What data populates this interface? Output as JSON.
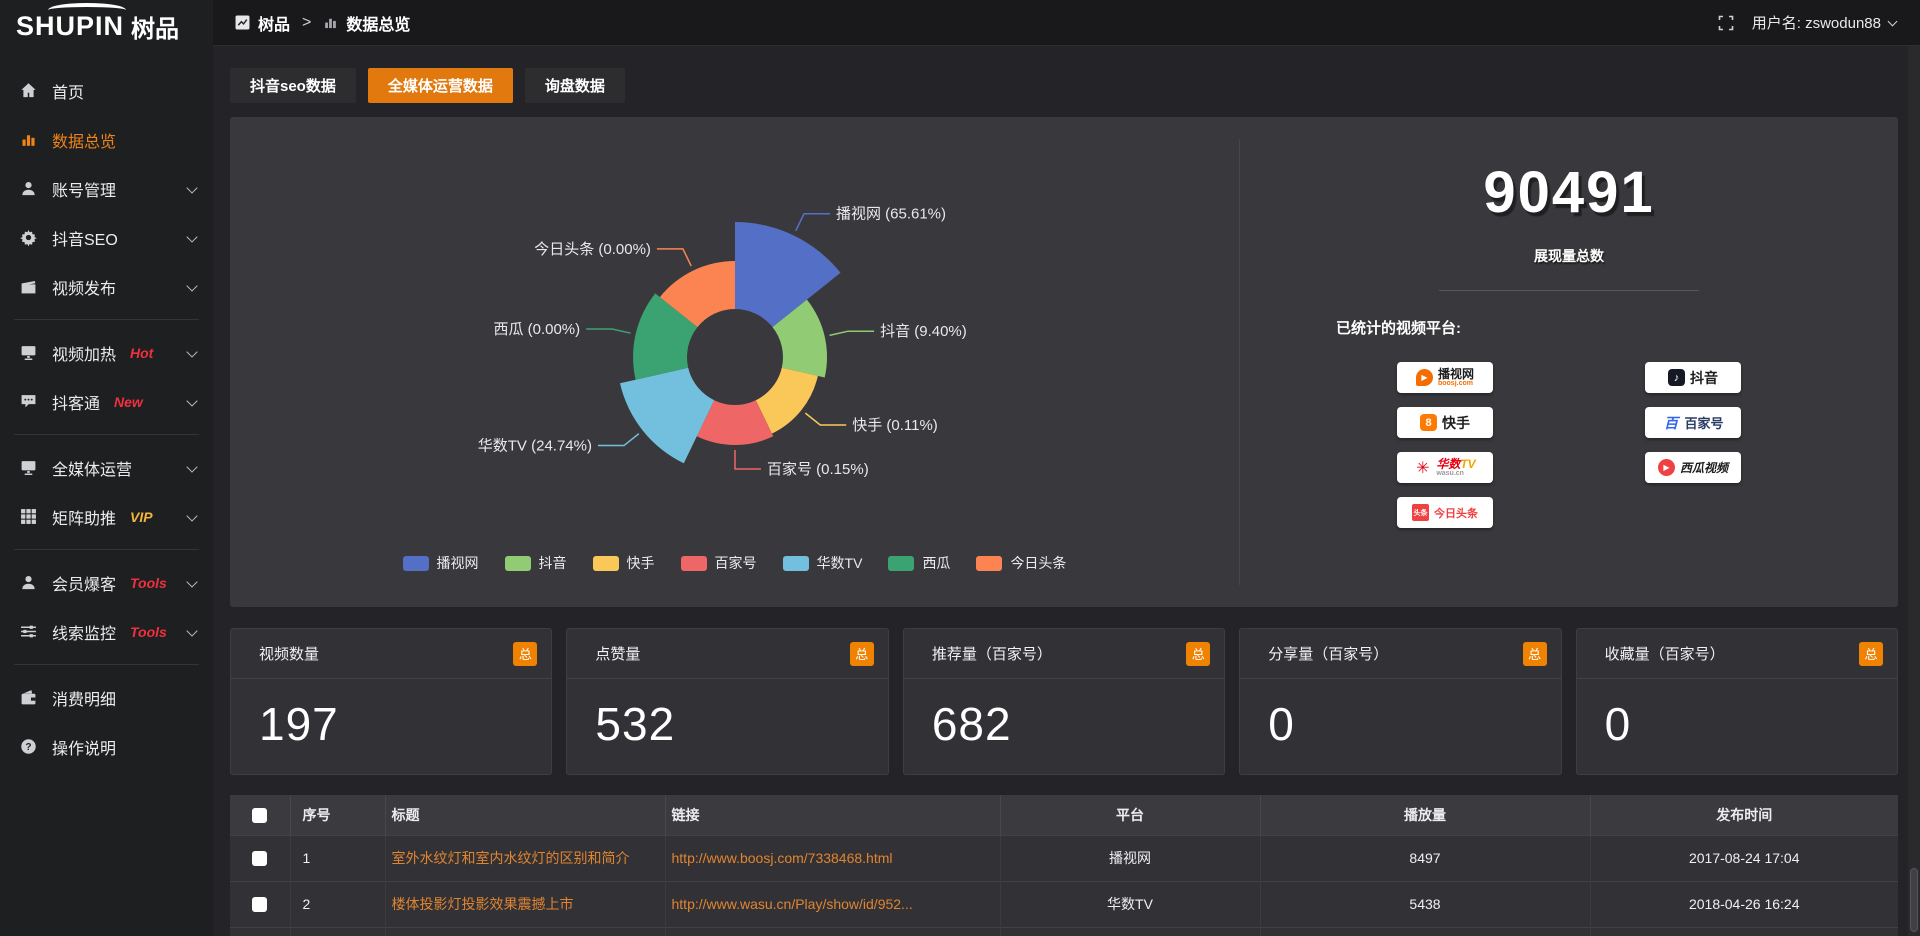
{
  "brand": {
    "logo_en": "SHUPIN",
    "logo_cn": "树品"
  },
  "topbar": {
    "breadcrumb_home": "树品",
    "breadcrumb_sep": ">",
    "breadcrumb_current": "数据总览",
    "username": "用户名: zswodun88"
  },
  "sidebar": {
    "items": [
      {
        "label": "首页"
      },
      {
        "label": "数据总览",
        "active": true
      },
      {
        "label": "账号管理"
      },
      {
        "label": "抖音SEO"
      },
      {
        "label": "视频发布"
      },
      {
        "label": "视频加热",
        "badge": "Hot"
      },
      {
        "label": "抖客通",
        "badge": "New"
      },
      {
        "label": "全媒体运营"
      },
      {
        "label": "矩阵助推",
        "badge": "VIP"
      },
      {
        "label": "会员爆客",
        "badge": "Tools"
      },
      {
        "label": "线索监控",
        "badge": "Tools"
      },
      {
        "label": "消费明细"
      },
      {
        "label": "操作说明"
      }
    ]
  },
  "tabs": [
    {
      "label": "抖音seo数据",
      "active": false
    },
    {
      "label": "全媒体运营数据",
      "active": true
    },
    {
      "label": "询盘数据",
      "active": false
    }
  ],
  "chart_data": {
    "type": "pie",
    "subtype": "nightingale-rose",
    "categories": [
      "播视网",
      "抖音",
      "快手",
      "百家号",
      "华数TV",
      "西瓜",
      "今日头条"
    ],
    "values": [
      65.61,
      9.4,
      0.11,
      0.15,
      24.74,
      0,
      0
    ],
    "unit": "%",
    "colors": [
      "#5470c6",
      "#91cc75",
      "#fac858",
      "#ee6666",
      "#73c0de",
      "#3ba272",
      "#fc8452"
    ],
    "display_radii": [
      135,
      92,
      85,
      88,
      118,
      102,
      96
    ],
    "inner_radius": 48,
    "legend_position": "bottom",
    "legend": [
      "播视网",
      "抖音",
      "快手",
      "百家号",
      "华数TV",
      "西瓜",
      "今日头条"
    ]
  },
  "summary": {
    "total_value": "90491",
    "total_label": "展现量总数",
    "platforms_label": "已统计的视频平台:",
    "platforms_left": [
      {
        "name": "播视网",
        "sub": "boosj.com"
      },
      {
        "name": "快手"
      },
      {
        "name": "华数",
        "suffix": "TV",
        "sub": "wasu.cn"
      },
      {
        "name": "今日头条",
        "icon_text": "头条"
      }
    ],
    "platforms_right": [
      {
        "name": "抖音"
      },
      {
        "name": "百家号",
        "icon_text": "百"
      },
      {
        "name": "西瓜视频"
      }
    ]
  },
  "stat_cards": [
    {
      "title": "视频数量",
      "badge": "总",
      "value": "197"
    },
    {
      "title": "点赞量",
      "badge": "总",
      "value": "532"
    },
    {
      "title": "推荐量（百家号）",
      "badge": "总",
      "value": "682"
    },
    {
      "title": "分享量（百家号）",
      "badge": "总",
      "value": "0"
    },
    {
      "title": "收藏量（百家号）",
      "badge": "总",
      "value": "0"
    }
  ],
  "table": {
    "headers": [
      "",
      "序号",
      "标题",
      "链接",
      "平台",
      "播放量",
      "发布时间"
    ],
    "rows": [
      {
        "index": "1",
        "title": "室外水纹灯和室内水纹灯的区别和简介",
        "link": "http://www.boosj.com/7338468.html",
        "platform": "播视网",
        "plays": "8497",
        "time": "2017-08-24 17:04"
      },
      {
        "index": "2",
        "title": "楼体投影灯投影效果震撼上市",
        "link": "http://www.wasu.cn/Play/show/id/952...",
        "platform": "华数TV",
        "plays": "5438",
        "time": "2018-04-26 16:24"
      }
    ]
  },
  "colors": {
    "accent_orange": "#e2790f",
    "badge_orange": "#ef8201",
    "sidebar_active_orange": "#ef8318",
    "hot_red": "#f0303f",
    "vip_gold": "#f0b73a",
    "link_orange": "#e08430"
  }
}
